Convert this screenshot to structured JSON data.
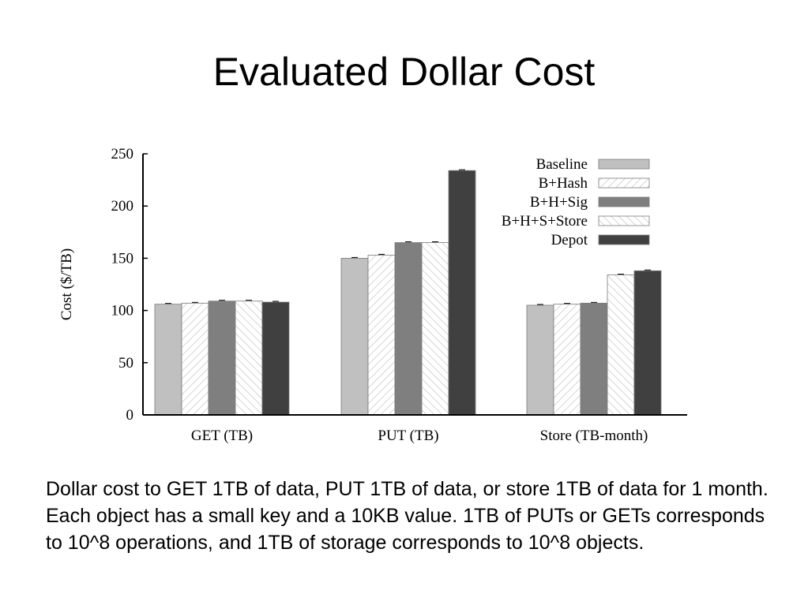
{
  "slide": {
    "title": "Evaluated Dollar Cost",
    "caption": "Dollar cost to GET 1TB of data, PUT 1TB of data, or store 1TB of data for 1 month. Each object has a small key and a 10KB value. 1TB of PUTs or GETs corresponds to 10^8 operations, and 1TB of storage corresponds to 10^8 objects."
  },
  "chart_data": {
    "type": "bar",
    "title": "",
    "xlabel": "",
    "ylabel": "Cost ($/TB)",
    "ylim": [
      0,
      250
    ],
    "yticks": [
      0,
      50,
      100,
      150,
      200,
      250
    ],
    "categories": [
      "GET (TB)",
      "PUT (TB)",
      "Store (TB-month)"
    ],
    "legend_position": "top-right",
    "series": [
      {
        "name": "Baseline",
        "values": [
          106,
          150,
          105
        ],
        "color": "#c0c0c0",
        "pattern": "solid"
      },
      {
        "name": "B+Hash",
        "values": [
          107,
          153,
          106
        ],
        "color": "#ffffff",
        "pattern": "diag-right"
      },
      {
        "name": "B+H+Sig",
        "values": [
          109,
          165,
          107
        ],
        "color": "#7f7f7f",
        "pattern": "solid"
      },
      {
        "name": "B+H+S+Store",
        "values": [
          109,
          165,
          134
        ],
        "color": "#ffffff",
        "pattern": "diag-left"
      },
      {
        "name": "Depot",
        "values": [
          108,
          234,
          138
        ],
        "color": "#404040",
        "pattern": "solid"
      }
    ]
  }
}
